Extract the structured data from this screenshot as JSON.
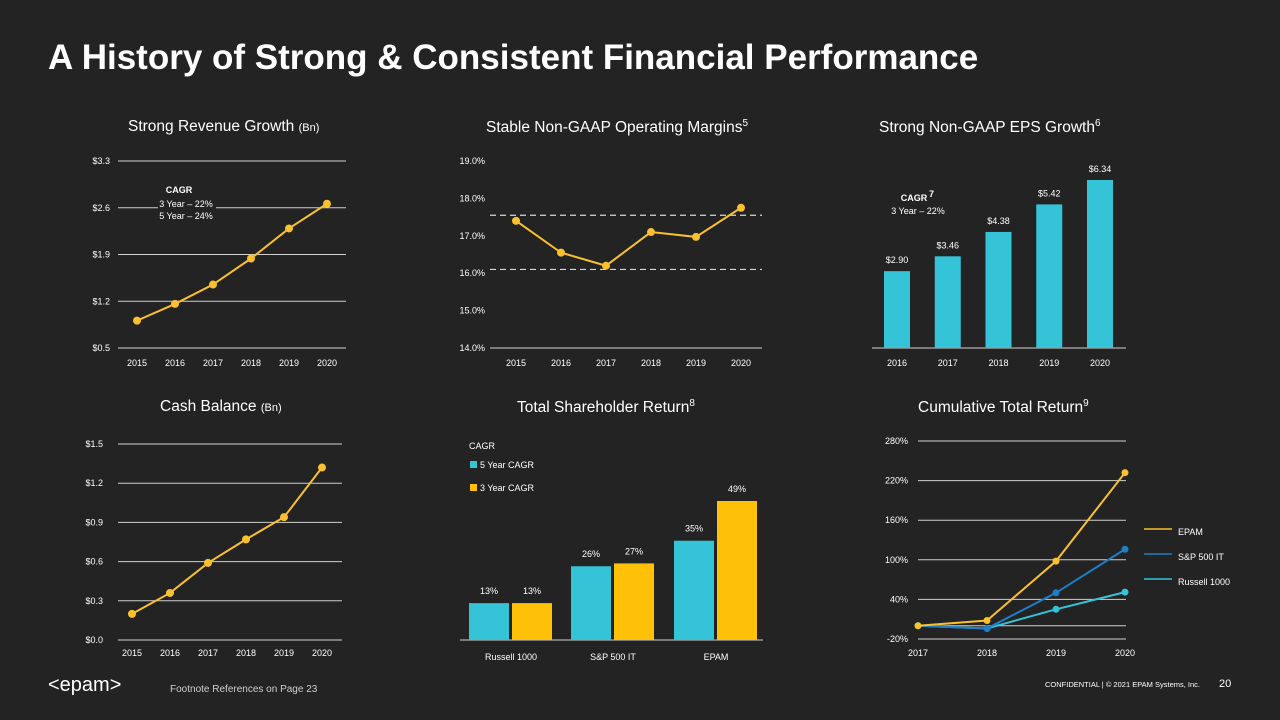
{
  "slide": {
    "title": "A History of Strong & Consistent Financial Performance",
    "footnote": "Footnote References on Page 23",
    "confidential": "CONFIDENTIAL  |  © 2021 EPAM Systems, Inc.",
    "page_number": "20",
    "logo_text": "<epam>"
  },
  "panels": {
    "revenue": {
      "title": "Strong Revenue Growth",
      "title_suffix": "(Bn)"
    },
    "margins": {
      "title": "Stable Non-GAAP Operating Margins",
      "title_sup": "5"
    },
    "eps": {
      "title": "Strong Non-GAAP EPS Growth",
      "title_sup": "6"
    },
    "cash": {
      "title": "Cash Balance",
      "title_suffix": "(Bn)"
    },
    "tsr": {
      "title": "Total Shareholder Return",
      "title_sup": "8"
    },
    "ctr": {
      "title": "Cumulative Total Return",
      "title_sup": "9"
    }
  },
  "chart_data": [
    {
      "id": "revenue",
      "type": "line",
      "x": [
        "2015",
        "2016",
        "2017",
        "2018",
        "2019",
        "2020"
      ],
      "values": [
        0.91,
        1.16,
        1.45,
        1.84,
        2.29,
        2.66
      ],
      "yticks": [
        "$3.3",
        "$2.6",
        "$1.9",
        "$1.2",
        "$0.5"
      ],
      "ylim": [
        0.5,
        3.3
      ],
      "annotation": {
        "heading": "CAGR",
        "lines": [
          "3 Year – 22%",
          "5 Year – 24%"
        ]
      },
      "color": "#FBC02D"
    },
    {
      "id": "margins",
      "type": "line",
      "x": [
        "2015",
        "2016",
        "2017",
        "2018",
        "2019",
        "2020"
      ],
      "values": [
        17.4,
        16.55,
        16.2,
        17.1,
        16.97,
        17.75
      ],
      "yticks": [
        "19.0%",
        "18.0%",
        "17.0%",
        "16.0%",
        "15.0%",
        "14.0%"
      ],
      "ylim": [
        14,
        19
      ],
      "reference_lines": [
        17.55,
        16.1
      ],
      "color": "#FBC02D"
    },
    {
      "id": "eps",
      "type": "bar",
      "categories": [
        "2016",
        "2017",
        "2018",
        "2019",
        "2020"
      ],
      "values": [
        2.9,
        3.46,
        4.38,
        5.42,
        6.34
      ],
      "labels": [
        "$2.90",
        "$3.46",
        "$4.38",
        "$5.42",
        "$6.34"
      ],
      "annotation": {
        "heading": "CAGR",
        "sup": "7",
        "lines": [
          "3 Year – 22%"
        ]
      },
      "color": "#35C3D8"
    },
    {
      "id": "cash",
      "type": "line",
      "x": [
        "2015",
        "2016",
        "2017",
        "2018",
        "2019",
        "2020"
      ],
      "values": [
        0.2,
        0.36,
        0.59,
        0.77,
        0.94,
        1.32
      ],
      "yticks": [
        "$1.5",
        "$1.2",
        "$0.9",
        "$0.6",
        "$0.3",
        "$0.0"
      ],
      "ylim": [
        0,
        1.5
      ],
      "color": "#FBC02D"
    },
    {
      "id": "tsr",
      "type": "bar",
      "categories": [
        "Russell 1000",
        "S&P 500 IT",
        "EPAM"
      ],
      "legend_title": "CAGR",
      "series": [
        {
          "name": "5 Year CAGR",
          "values": [
            13,
            26,
            35
          ],
          "labels": [
            "13%",
            "26%",
            "35%"
          ],
          "color": "#35C3D8"
        },
        {
          "name": "3 Year CAGR",
          "values": [
            13,
            27,
            49
          ],
          "labels": [
            "13%",
            "27%",
            "49%"
          ],
          "color": "#FFC107"
        }
      ]
    },
    {
      "id": "ctr",
      "type": "line",
      "x": [
        "2017",
        "2018",
        "2019",
        "2020"
      ],
      "yticks": [
        "280%",
        "220%",
        "160%",
        "100%",
        "40%",
        "-20%"
      ],
      "ylim": [
        -20,
        280
      ],
      "series": [
        {
          "name": "EPAM",
          "values": [
            0,
            8,
            98,
            232
          ],
          "color": "#FBC02D"
        },
        {
          "name": "S&P 500 IT",
          "values": [
            0,
            -4,
            50,
            116
          ],
          "color": "#1E7FC8"
        },
        {
          "name": "Russell 1000",
          "values": [
            0,
            -4,
            25,
            51
          ],
          "color": "#35C3D8"
        }
      ]
    }
  ]
}
